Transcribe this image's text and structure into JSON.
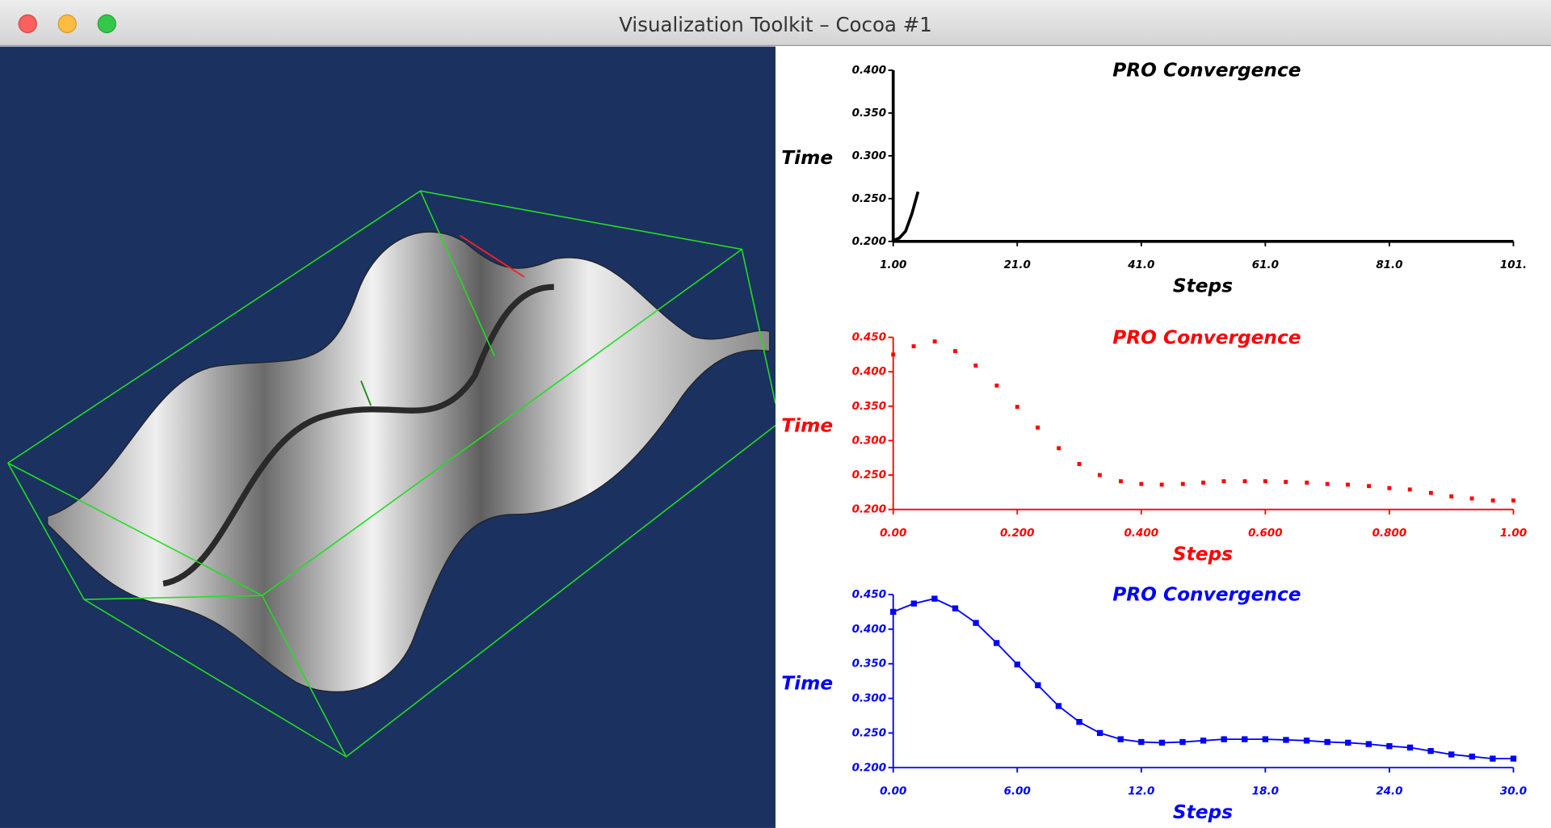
{
  "window": {
    "title": "Visualization Toolkit – Cocoa #1"
  },
  "chart_data": [
    {
      "type": "line",
      "title": "PRO Convergence",
      "x_label": "Steps",
      "y_label": "Time",
      "color": "#000000",
      "markers": false,
      "xlim": [
        1,
        101
      ],
      "xticks": [
        {
          "value": 1,
          "label": "1.00"
        },
        {
          "value": 21,
          "label": "21.0"
        },
        {
          "value": 41,
          "label": "41.0"
        },
        {
          "value": 61,
          "label": "61.0"
        },
        {
          "value": 81,
          "label": "81.0"
        },
        {
          "value": 101,
          "label": "101."
        }
      ],
      "ylim": [
        0.2,
        0.4
      ],
      "yticks": [
        {
          "value": 0.2,
          "label": "0.200"
        },
        {
          "value": 0.25,
          "label": "0.250"
        },
        {
          "value": 0.3,
          "label": "0.300"
        },
        {
          "value": 0.35,
          "label": "0.350"
        },
        {
          "value": 0.4,
          "label": "0.400"
        }
      ],
      "x": [
        1,
        2,
        3,
        4,
        5
      ],
      "values": [
        0.201,
        0.204,
        0.212,
        0.232,
        0.258
      ]
    },
    {
      "type": "scatter",
      "title": "PRO Convergence",
      "x_label": "Steps",
      "y_label": "Time",
      "color": "#ff0000",
      "xlim": [
        0,
        1
      ],
      "xticks": [
        {
          "value": 0,
          "label": "0.00"
        },
        {
          "value": 0.2,
          "label": "0.200"
        },
        {
          "value": 0.4,
          "label": "0.400"
        },
        {
          "value": 0.6,
          "label": "0.600"
        },
        {
          "value": 0.8,
          "label": "0.800"
        },
        {
          "value": 1,
          "label": "1.00"
        }
      ],
      "ylim": [
        0.2,
        0.45
      ],
      "yticks": [
        {
          "value": 0.2,
          "label": "0.200"
        },
        {
          "value": 0.25,
          "label": "0.250"
        },
        {
          "value": 0.3,
          "label": "0.300"
        },
        {
          "value": 0.35,
          "label": "0.350"
        },
        {
          "value": 0.4,
          "label": "0.400"
        },
        {
          "value": 0.45,
          "label": "0.450"
        }
      ],
      "x": [
        0,
        0.033,
        0.067,
        0.1,
        0.133,
        0.167,
        0.2,
        0.233,
        0.267,
        0.3,
        0.333,
        0.367,
        0.4,
        0.433,
        0.467,
        0.5,
        0.533,
        0.567,
        0.6,
        0.633,
        0.667,
        0.7,
        0.733,
        0.767,
        0.8,
        0.833,
        0.867,
        0.9,
        0.933,
        0.967,
        1
      ],
      "values": [
        0.425,
        0.437,
        0.444,
        0.43,
        0.409,
        0.38,
        0.349,
        0.319,
        0.289,
        0.266,
        0.25,
        0.241,
        0.237,
        0.236,
        0.237,
        0.239,
        0.241,
        0.241,
        0.241,
        0.24,
        0.239,
        0.237,
        0.236,
        0.234,
        0.231,
        0.229,
        0.224,
        0.219,
        0.216,
        0.213,
        0.213
      ]
    },
    {
      "type": "line",
      "title": "PRO Convergence",
      "x_label": "Steps",
      "y_label": "Time",
      "color": "#0000ff",
      "markers": true,
      "xlim": [
        0,
        30
      ],
      "xticks": [
        {
          "value": 0,
          "label": "0.00"
        },
        {
          "value": 6,
          "label": "6.00"
        },
        {
          "value": 12,
          "label": "12.0"
        },
        {
          "value": 18,
          "label": "18.0"
        },
        {
          "value": 24,
          "label": "24.0"
        },
        {
          "value": 30,
          "label": "30.0"
        }
      ],
      "ylim": [
        0.2,
        0.45
      ],
      "yticks": [
        {
          "value": 0.2,
          "label": "0.200"
        },
        {
          "value": 0.25,
          "label": "0.250"
        },
        {
          "value": 0.3,
          "label": "0.300"
        },
        {
          "value": 0.35,
          "label": "0.350"
        },
        {
          "value": 0.4,
          "label": "0.400"
        },
        {
          "value": 0.45,
          "label": "0.450"
        }
      ],
      "x": [
        0,
        1,
        2,
        3,
        4,
        5,
        6,
        7,
        8,
        9,
        10,
        11,
        12,
        13,
        14,
        15,
        16,
        17,
        18,
        19,
        20,
        21,
        22,
        23,
        24,
        25,
        26,
        27,
        28,
        29,
        30
      ],
      "values": [
        0.425,
        0.437,
        0.444,
        0.43,
        0.409,
        0.38,
        0.349,
        0.319,
        0.289,
        0.266,
        0.25,
        0.241,
        0.237,
        0.236,
        0.237,
        0.239,
        0.241,
        0.241,
        0.241,
        0.24,
        0.239,
        0.237,
        0.236,
        0.234,
        0.231,
        0.229,
        0.224,
        0.219,
        0.216,
        0.213,
        0.213
      ]
    }
  ]
}
